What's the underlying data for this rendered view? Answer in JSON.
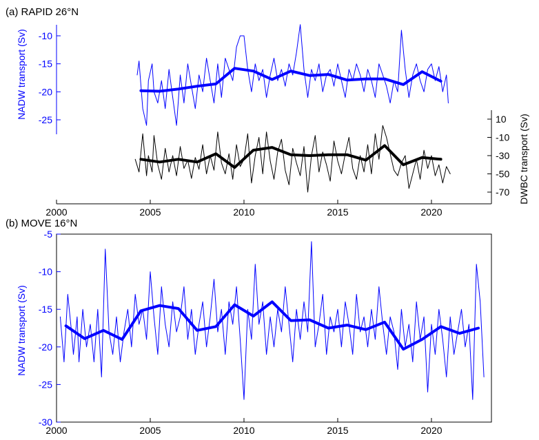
{
  "chart_data": [
    {
      "type": "line",
      "title": "(a) RAPID 26°N",
      "x_ticks": [
        2000,
        2005,
        2010,
        2015,
        2020
      ],
      "xlim": [
        2000,
        2023.2
      ],
      "grid": false,
      "left_axis": {
        "label": "NADW transport (Sv)",
        "ticks": [
          -10,
          -15,
          -20,
          -25
        ],
        "color": "#0000ff"
      },
      "right_axis": {
        "label": "DWBC transport (Sv)",
        "ticks": [
          10,
          -10,
          -30,
          -50,
          -70
        ],
        "color": "#000000"
      },
      "series": [
        {
          "axis": "left",
          "color": "#0000ff",
          "style": "monthly-thin",
          "x": [
            2004.3,
            2004.4,
            2004.6,
            2004.8,
            2004.9,
            2005.1,
            2005.2,
            2005.4,
            2005.6,
            2005.8,
            2006.0,
            2006.2,
            2006.4,
            2006.6,
            2006.8,
            2007.0,
            2007.2,
            2007.4,
            2007.6,
            2007.8,
            2008.0,
            2008.2,
            2008.4,
            2008.6,
            2008.8,
            2009.0,
            2009.2,
            2009.4,
            2009.6,
            2009.8,
            2010.0,
            2010.2,
            2010.4,
            2010.6,
            2010.8,
            2011.0,
            2011.2,
            2011.4,
            2011.6,
            2011.8,
            2012.0,
            2012.2,
            2012.4,
            2012.6,
            2012.8,
            2013.0,
            2013.2,
            2013.4,
            2013.6,
            2013.8,
            2014.0,
            2014.2,
            2014.4,
            2014.6,
            2014.8,
            2015.0,
            2015.2,
            2015.4,
            2015.6,
            2015.8,
            2016.0,
            2016.2,
            2016.4,
            2016.6,
            2016.8,
            2017.0,
            2017.2,
            2017.4,
            2017.6,
            2017.8,
            2018.0,
            2018.2,
            2018.4,
            2018.6,
            2018.8,
            2019.0,
            2019.2,
            2019.4,
            2019.6,
            2019.8,
            2020.0,
            2020.2,
            2020.4,
            2020.6,
            2020.8,
            2020.9
          ],
          "y": [
            -17,
            -14.5,
            -23,
            -26,
            -18,
            -15,
            -20,
            -22,
            -18,
            -23,
            -16,
            -21,
            -26,
            -17,
            -22,
            -15,
            -19,
            -23,
            -17,
            -20,
            -14,
            -18,
            -22,
            -15,
            -21,
            -14,
            -16,
            -18,
            -12,
            -10,
            -10,
            -16,
            -20,
            -15,
            -18,
            -16,
            -21,
            -17,
            -14,
            -18,
            -16,
            -19,
            -15,
            -17,
            -13,
            -8,
            -16,
            -21,
            -16,
            -18,
            -15,
            -20,
            -17,
            -16,
            -19,
            -15,
            -18,
            -21,
            -16,
            -18,
            -15,
            -17,
            -20,
            -16,
            -18,
            -21,
            -15,
            -17,
            -19,
            -22,
            -18,
            -20,
            -9,
            -16,
            -21,
            -17,
            -15,
            -18,
            -20,
            -16,
            -15,
            -18,
            -15.5,
            -20,
            -17,
            -22
          ]
        },
        {
          "axis": "left",
          "color": "#0000ff",
          "style": "annual-thick",
          "x": [
            2004.5,
            2005.5,
            2006.5,
            2007.5,
            2008.5,
            2009.5,
            2010.5,
            2011.5,
            2012.5,
            2013.5,
            2014.5,
            2015.5,
            2016.5,
            2017.5,
            2018.5,
            2019.5,
            2020.5
          ],
          "y": [
            -19.8,
            -19.9,
            -19.5,
            -19.0,
            -18.6,
            -15.8,
            -16.3,
            -17.8,
            -16.3,
            -17.1,
            -16.9,
            -17.9,
            -17.7,
            -17.7,
            -18.7,
            -16.4,
            -18.1
          ]
        },
        {
          "axis": "right",
          "color": "#000000",
          "style": "monthly-thin",
          "x": [
            2004.2,
            2004.4,
            2004.6,
            2004.8,
            2004.9,
            2005.1,
            2005.2,
            2005.4,
            2005.6,
            2005.8,
            2006.0,
            2006.2,
            2006.4,
            2006.6,
            2006.8,
            2007.0,
            2007.2,
            2007.4,
            2007.6,
            2007.8,
            2008.0,
            2008.2,
            2008.4,
            2008.6,
            2008.8,
            2009.0,
            2009.2,
            2009.4,
            2009.6,
            2009.8,
            2010.0,
            2010.2,
            2010.4,
            2010.6,
            2010.8,
            2011.0,
            2011.2,
            2011.4,
            2011.6,
            2011.8,
            2012.0,
            2012.2,
            2012.4,
            2012.6,
            2012.8,
            2013.0,
            2013.2,
            2013.4,
            2013.6,
            2013.8,
            2014.0,
            2014.2,
            2014.4,
            2014.6,
            2014.8,
            2015.0,
            2015.2,
            2015.4,
            2015.6,
            2015.8,
            2016.0,
            2016.2,
            2016.4,
            2016.6,
            2016.8,
            2017.0,
            2017.2,
            2017.4,
            2017.6,
            2017.8,
            2018.0,
            2018.2,
            2018.4,
            2018.6,
            2018.8,
            2019.0,
            2019.2,
            2019.4,
            2019.6,
            2019.8,
            2020.0,
            2020.2,
            2020.4,
            2020.6,
            2020.8,
            2021.0
          ],
          "y": [
            -34,
            -48,
            -6,
            -52,
            -30,
            -48,
            -8,
            -40,
            -56,
            -22,
            -48,
            -30,
            -52,
            -20,
            -44,
            -35,
            -55,
            -32,
            -45,
            -18,
            -50,
            -30,
            -46,
            -4,
            -38,
            -50,
            -28,
            -56,
            -18,
            -42,
            -34,
            -6,
            -60,
            -30,
            -10,
            -50,
            -4,
            -36,
            -56,
            -26,
            -12,
            -46,
            -62,
            -22,
            -38,
            -52,
            -20,
            -70,
            -30,
            -8,
            -48,
            -26,
            -40,
            -58,
            -14,
            -36,
            -50,
            -28,
            -10,
            -44,
            -56,
            -30,
            -48,
            -18,
            -50,
            -6,
            -34,
            3,
            -10,
            -28,
            -46,
            -52,
            -38,
            -30,
            -66,
            -50,
            -34,
            -56,
            -24,
            -44,
            -30,
            -52,
            -40,
            -60,
            -42,
            -50
          ]
        },
        {
          "axis": "right",
          "color": "#000000",
          "style": "annual-thick",
          "x": [
            2004.5,
            2005.5,
            2006.5,
            2007.5,
            2008.5,
            2009.5,
            2010.5,
            2011.5,
            2012.5,
            2013.5,
            2014.5,
            2015.5,
            2016.5,
            2017.5,
            2018.5,
            2019.5,
            2020.5
          ],
          "y": [
            -34,
            -37,
            -34,
            -37,
            -28,
            -43,
            -24,
            -21,
            -29,
            -30,
            -29,
            -29,
            -35,
            -19,
            -40,
            -32,
            -34
          ]
        }
      ]
    },
    {
      "type": "line",
      "title": "(b) MOVE 16°N",
      "x_ticks": [
        2000,
        2005,
        2010,
        2015,
        2020
      ],
      "xlim": [
        2000,
        2023.2
      ],
      "ylim": [
        -30,
        -5
      ],
      "grid": false,
      "left_axis": {
        "label": "NADW transport (Sv)",
        "ticks": [
          -5,
          -10,
          -15,
          -20,
          -25,
          -30
        ],
        "color": "#0000ff"
      },
      "series": [
        {
          "axis": "left",
          "color": "#0000ff",
          "style": "monthly-thin",
          "x": [
            2000.2,
            2000.4,
            2000.6,
            2000.8,
            2000.9,
            2001.1,
            2001.2,
            2001.4,
            2001.6,
            2001.8,
            2002.0,
            2002.2,
            2002.4,
            2002.6,
            2002.8,
            2003.0,
            2003.2,
            2003.4,
            2003.6,
            2003.8,
            2004.0,
            2004.2,
            2004.4,
            2004.6,
            2004.8,
            2005.0,
            2005.2,
            2005.4,
            2005.6,
            2005.8,
            2006.0,
            2006.2,
            2006.4,
            2006.6,
            2006.8,
            2007.0,
            2007.2,
            2007.4,
            2007.6,
            2007.8,
            2008.0,
            2008.2,
            2008.4,
            2008.6,
            2008.8,
            2009.0,
            2009.2,
            2009.4,
            2009.6,
            2009.8,
            2010.0,
            2010.2,
            2010.4,
            2010.6,
            2010.8,
            2011.0,
            2011.2,
            2011.4,
            2011.6,
            2011.8,
            2012.0,
            2012.2,
            2012.4,
            2012.6,
            2012.8,
            2013.0,
            2013.2,
            2013.4,
            2013.6,
            2013.8,
            2014.0,
            2014.2,
            2014.4,
            2014.6,
            2014.8,
            2015.0,
            2015.2,
            2015.4,
            2015.6,
            2015.8,
            2016.0,
            2016.2,
            2016.4,
            2016.6,
            2016.8,
            2017.0,
            2017.2,
            2017.4,
            2017.6,
            2017.8,
            2018.0,
            2018.2,
            2018.4,
            2018.6,
            2018.8,
            2019.0,
            2019.2,
            2019.4,
            2019.6,
            2019.8,
            2020.0,
            2020.2,
            2020.4,
            2020.6,
            2020.8,
            2021.0,
            2021.2,
            2021.4,
            2021.6,
            2021.8,
            2022.0,
            2022.2,
            2022.4,
            2022.6,
            2022.8
          ],
          "y": [
            -16,
            -22,
            -13,
            -18,
            -21,
            -16,
            -22,
            -15,
            -20,
            -17,
            -22,
            -15,
            -24,
            -7,
            -18,
            -21,
            -16,
            -22,
            -18,
            -15,
            -20,
            -13,
            -17,
            -15,
            -19,
            -10,
            -16,
            -21,
            -12,
            -17,
            -20,
            -14,
            -18,
            -16,
            -12,
            -19,
            -15,
            -21,
            -17,
            -14,
            -20,
            -16,
            -11,
            -18,
            -15,
            -21,
            -14,
            -17,
            -12,
            -19,
            -27,
            -15,
            -19,
            -9,
            -17,
            -14,
            -21,
            -16,
            -20,
            -15,
            -18,
            -12,
            -17,
            -22,
            -15,
            -19,
            -14,
            -18,
            -6,
            -20,
            -17,
            -13,
            -21,
            -16,
            -18,
            -15,
            -20,
            -14,
            -17,
            -21,
            -13,
            -18,
            -16,
            -20,
            -15,
            -19,
            -12,
            -17,
            -21,
            -16,
            -18,
            -23,
            -15,
            -20,
            -17,
            -22,
            -14,
            -19,
            -16,
            -26,
            -17,
            -21,
            -15,
            -19,
            -24,
            -16,
            -21,
            -18,
            -15,
            -20,
            -17,
            -27,
            -9,
            -14,
            -24
          ]
        },
        {
          "axis": "left",
          "color": "#0000ff",
          "style": "annual-thick",
          "x": [
            2000.5,
            2001.5,
            2002.5,
            2003.5,
            2004.5,
            2005.5,
            2006.5,
            2007.5,
            2008.5,
            2009.5,
            2010.5,
            2011.5,
            2012.5,
            2013.5,
            2014.5,
            2015.5,
            2016.5,
            2017.5,
            2018.5,
            2019.5,
            2020.5,
            2021.5,
            2022.5
          ],
          "y": [
            -17.2,
            -18.9,
            -17.8,
            -19.0,
            -15.2,
            -14.5,
            -14.9,
            -17.8,
            -17.3,
            -14.4,
            -15.9,
            -14.0,
            -16.5,
            -16.4,
            -17.5,
            -17.1,
            -17.7,
            -16.7,
            -20.3,
            -19.0,
            -17.3,
            -18.2,
            -17.5
          ]
        }
      ]
    }
  ]
}
